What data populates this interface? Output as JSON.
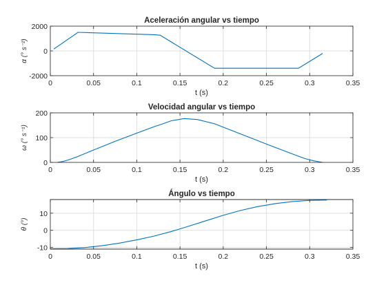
{
  "chart_data": [
    {
      "type": "line",
      "title": "Aceleración angular vs tiempo",
      "xlabel": "t (s)",
      "ylabel": "α (° s⁻²)",
      "xlim": [
        0,
        0.35
      ],
      "ylim": [
        -2000,
        2000
      ],
      "xticks": [
        0,
        0.05,
        0.1,
        0.15,
        0.2,
        0.25,
        0.3,
        0.35
      ],
      "xtick_labels": [
        "0",
        "0.05",
        "0.1",
        "0.15",
        "0.2",
        "0.25",
        "0.3",
        "0.35"
      ],
      "yticks": [
        -2000,
        0,
        2000
      ],
      "ytick_labels": [
        "-2000",
        "0",
        "2000"
      ],
      "grid": true,
      "series": [
        {
          "color": "#0072BD",
          "x": [
            0.004,
            0.032,
            0.12,
            0.127,
            0.19,
            0.287,
            0.315
          ],
          "y": [
            150,
            1500,
            1310,
            1270,
            -1400,
            -1400,
            -200
          ]
        }
      ]
    },
    {
      "type": "line",
      "title": "Velocidad angular vs tiempo",
      "xlabel": "t (s)",
      "ylabel": "ω (° s⁻¹)",
      "xlim": [
        0,
        0.35
      ],
      "ylim": [
        0,
        200
      ],
      "xticks": [
        0,
        0.05,
        0.1,
        0.15,
        0.2,
        0.25,
        0.3,
        0.35
      ],
      "xtick_labels": [
        "0",
        "0.05",
        "0.1",
        "0.15",
        "0.2",
        "0.25",
        "0.3",
        "0.35"
      ],
      "yticks": [
        0,
        100,
        200
      ],
      "ytick_labels": [
        "0",
        "100",
        "200"
      ],
      "grid": true,
      "series": [
        {
          "color": "#0072BD",
          "x": [
            0.008,
            0.015,
            0.02,
            0.025,
            0.032,
            0.05,
            0.075,
            0.1,
            0.12,
            0.127,
            0.14,
            0.155,
            0.17,
            0.19,
            0.22,
            0.25,
            0.28,
            0.287,
            0.295,
            0.305,
            0.315
          ],
          "y": [
            0,
            4,
            9,
            15,
            24,
            50,
            85,
            118,
            144,
            152,
            168,
            177,
            173,
            156,
            115,
            74,
            34,
            25,
            15,
            6,
            0
          ]
        }
      ]
    },
    {
      "type": "line",
      "title": "Ángulo vs tiempo",
      "xlabel": "t (s)",
      "ylabel": "θ (°)",
      "xlim": [
        0,
        0.35
      ],
      "ylim": [
        -11,
        18
      ],
      "xticks": [
        0,
        0.05,
        0.1,
        0.15,
        0.2,
        0.25,
        0.3,
        0.35
      ],
      "xtick_labels": [
        "0",
        "0.05",
        "0.1",
        "0.15",
        "0.2",
        "0.25",
        "0.3",
        "0.35"
      ],
      "yticks": [
        -10,
        0,
        10
      ],
      "ytick_labels": [
        "-10",
        "0",
        "10"
      ],
      "grid": true,
      "series": [
        {
          "color": "#0072BD",
          "x": [
            0,
            0.02,
            0.04,
            0.06,
            0.08,
            0.1,
            0.12,
            0.14,
            0.16,
            0.18,
            0.2,
            0.22,
            0.24,
            0.26,
            0.28,
            0.3,
            0.32
          ],
          "y": [
            -10.8,
            -10.7,
            -10.1,
            -9.0,
            -7.5,
            -5.6,
            -3.4,
            -0.7,
            2.4,
            5.6,
            8.8,
            11.6,
            13.9,
            15.6,
            16.8,
            17.5,
            17.7
          ]
        }
      ]
    }
  ]
}
